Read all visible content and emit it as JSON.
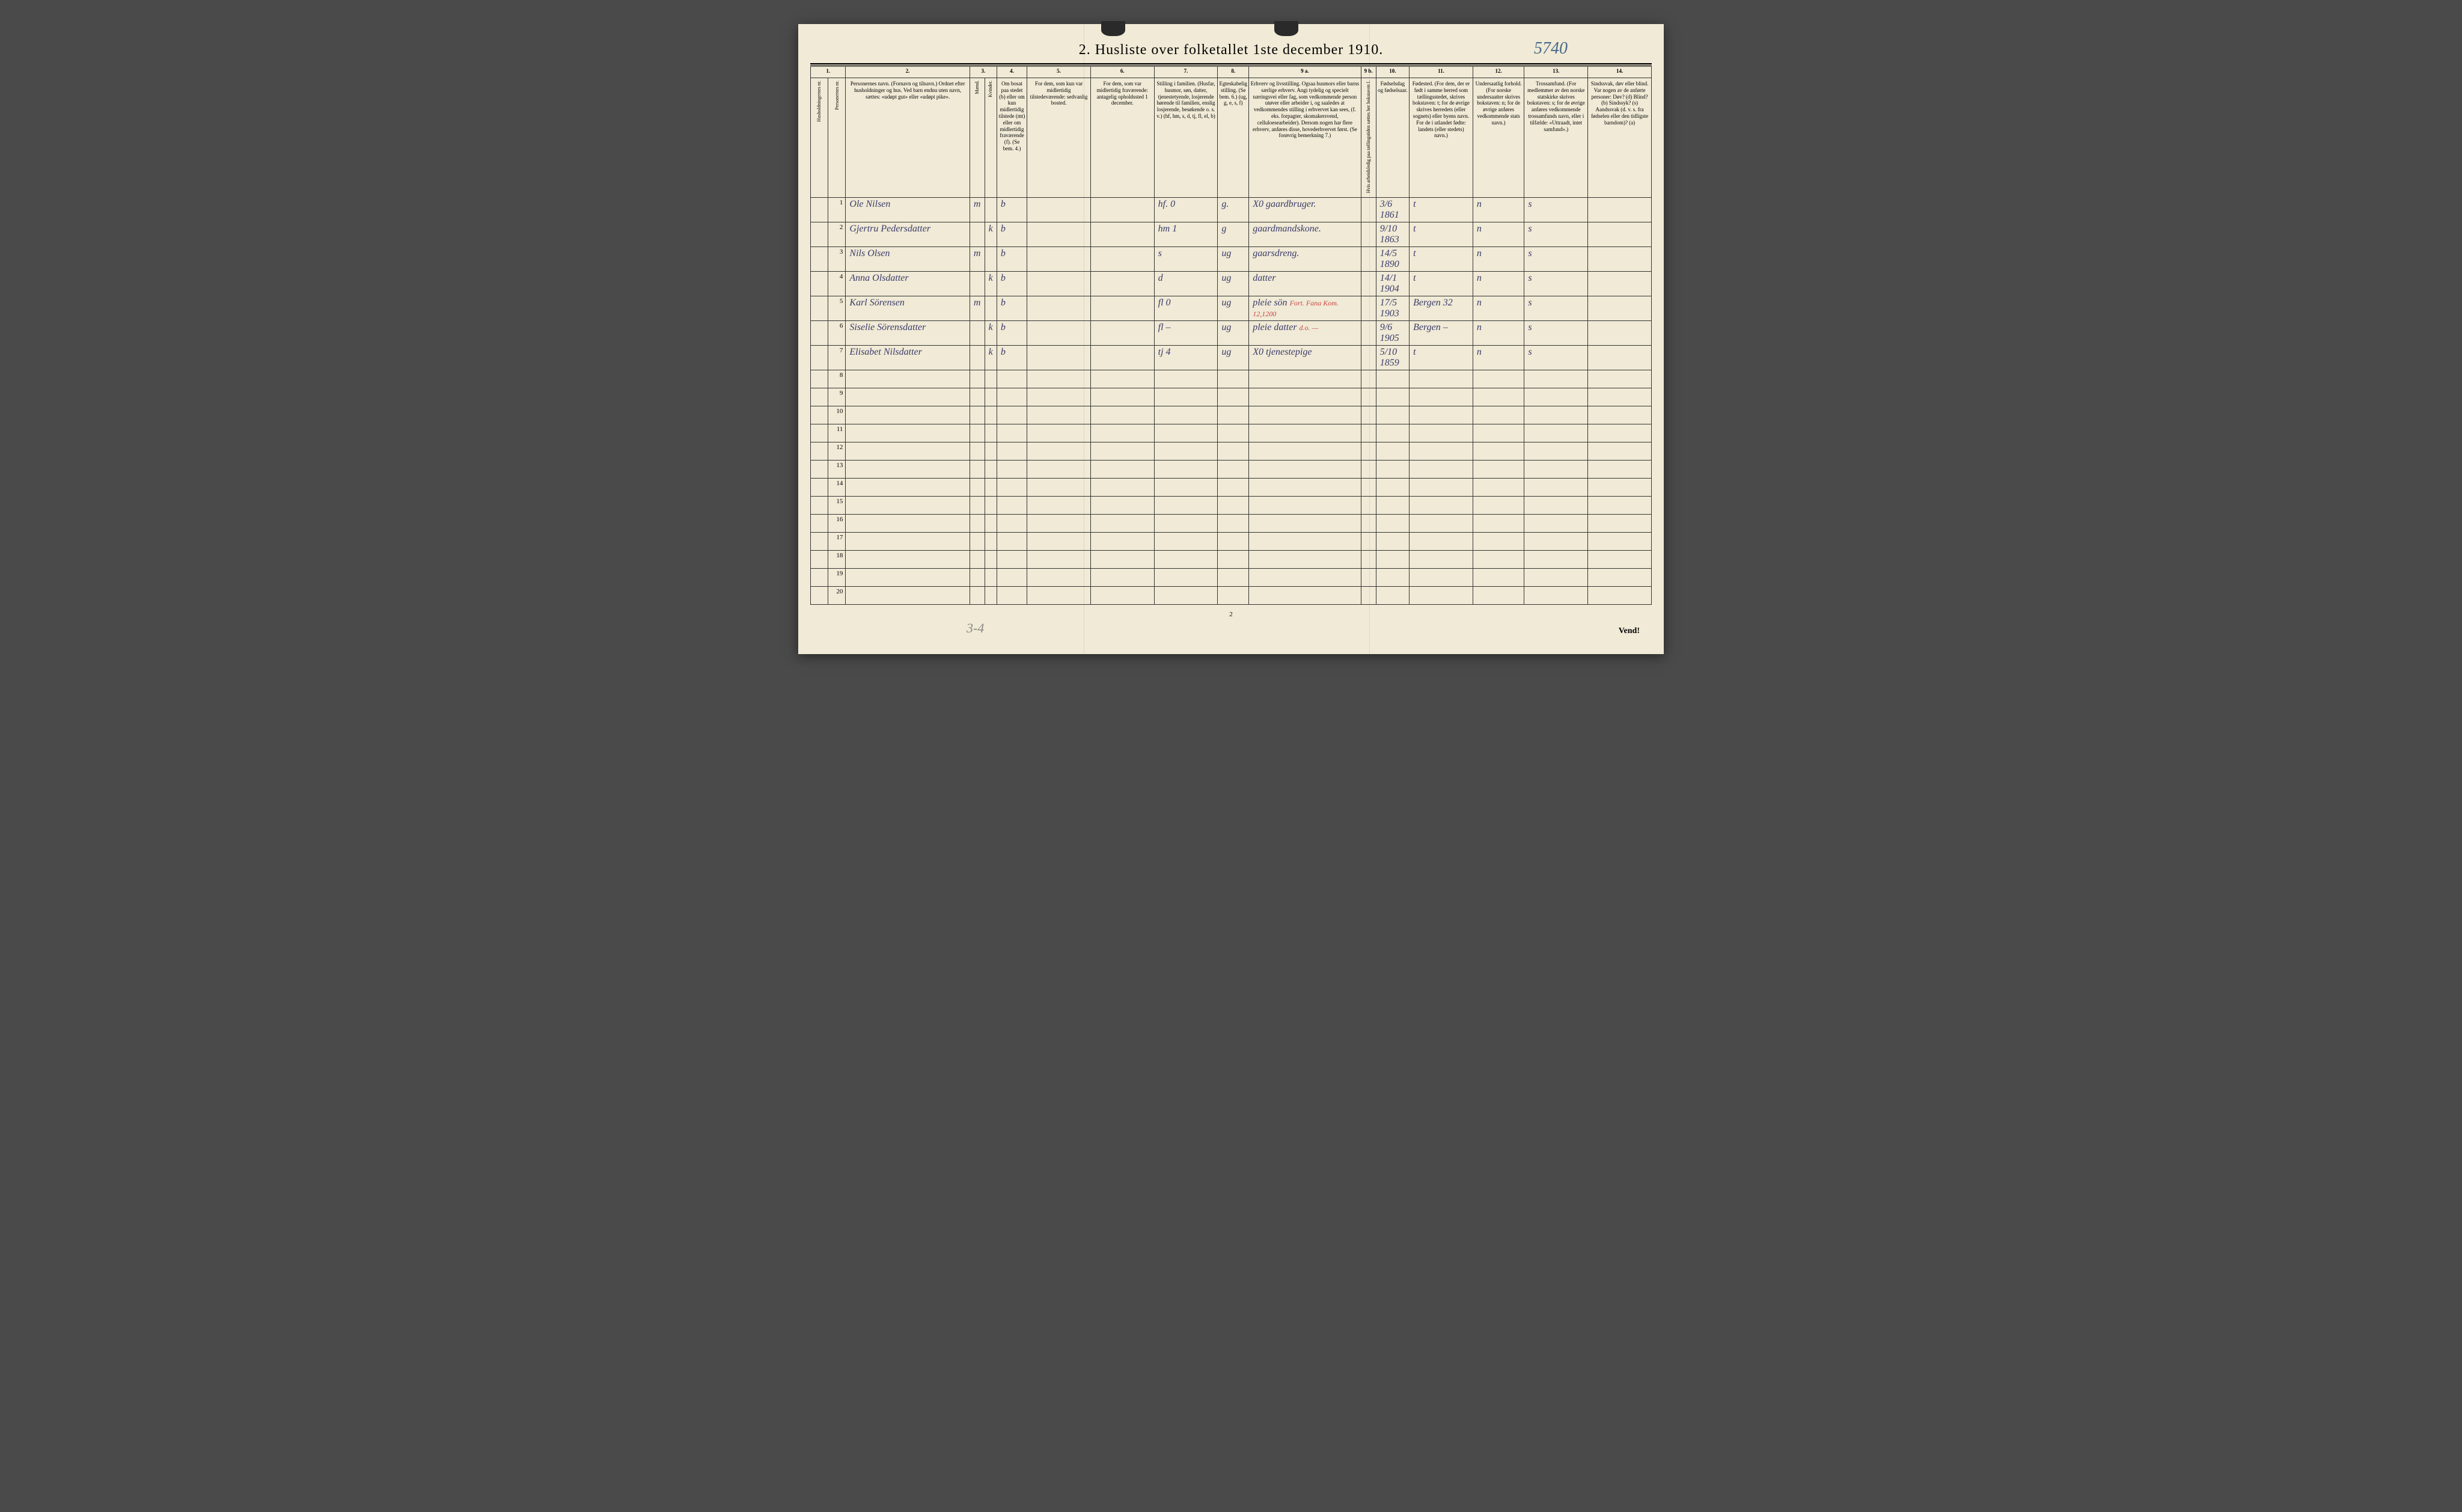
{
  "title": "2.  Husliste over folketallet 1ste december 1910.",
  "handwritten_top_right": "5740",
  "bottom_annotation": "3-4",
  "page_number": "2",
  "vend_label": "Vend!",
  "columns": {
    "nums": [
      "1.",
      "2.",
      "3.",
      "4.",
      "5.",
      "6.",
      "7.",
      "8.",
      "9 a.",
      "9 b.",
      "10.",
      "11.",
      "12.",
      "13.",
      "14."
    ],
    "h1_vert": "Husholdningernes nr.",
    "h1b_vert": "Personernes nr.",
    "h2": "Personernes navn.\n(Fornavn og tilnavn.)\nOrdnet efter husholdninger og hus.\nVed barn endnu uten navn, sættes: «udøpt gut» eller «udøpt pike».",
    "h3_top": "Kjøn.",
    "h3_m": "Mænd.",
    "h3_k": "Kvinder.",
    "h3_sub": "m. k.",
    "h4": "Om bosat paa stedet (b) eller om kun midlertidig tilstede (mt) eller om midlertidig fraværende (f). (Se bem. 4.)",
    "h5": "For dem, som kun var midlertidig tilstedeværende:\nsedvanlig bosted.",
    "h6": "For dem, som var midlertidig fraværende:\nantagelig opholdssted 1 december.",
    "h7": "Stilling i familien.\n(Husfar, husmor, søn, datter, tjenestetyende, losjerende hørende til familien, enslig losjerende, besøkende o. s. v.)\n(hf, hm, s, d, tj, fl, el, b)",
    "h8": "Egteskabelig stilling.\n(Se bem. 6.)\n(ug, g, e, s, f)",
    "h9a": "Erhverv og livsstilling.\nOgsaa husmors eller barns særlige erhverv. Angi tydelig og specielt næringsvei eller fag, som vedkommende person utøver eller arbeider i, og saaledes at vedkommendes stilling i erhvervet kan sees, (f. eks. forpagter, skomakersvend, celluloesearbeider). Dersom nogen har flere erhverv, anføres disse, hovederhvervet først.\n(Se forøvrig bemerkning 7.)",
    "h9b": "Hvis arbeidsledig paa tællingstiden sættes her bokstaven l.",
    "h10": "Fødselsdag og fødselsaar.",
    "h11": "Fødested.\n(For dem, der er født i samme herred som tællingsstedet, skrives bokstaven: t; for de øvrige skrives herredets (eller sognets) eller byens navn. For de i utlandet fødte: landets (eller stedets) navn.)",
    "h12": "Undersaatlig forhold.\n(For norske undersaatter skrives bokstaven: n; for de øvrige anføres vedkommende stats navn.)",
    "h13": "Trossamfund.\n(For medlemmer av den norske statskirke skrives bokstaven: s; for de øvrige anføres vedkommende trossamfunds navn, eller i tilfælde: «Uttraadt, intet samfund».)",
    "h14": "Sindssvak, døv eller blind.\nVar nogen av de anførte personer:\nDøv? (d)\nBlind? (b)\nSindssyk? (s)\nAandssvak (d. v. s. fra fødselen eller den tidligste barndom)? (a)"
  },
  "rows": [
    {
      "n": "1",
      "name": "Ole Nilsen",
      "sex_m": "m",
      "sex_k": "",
      "bosat": "b",
      "c5": "",
      "c6": "",
      "c7": "hf.    0",
      "c8": "g.",
      "c9a": "X0 gaardbruger.",
      "c9b": "",
      "c10": "3/6 1861",
      "c11": "t",
      "c12": "n",
      "c13": "s",
      "c14": ""
    },
    {
      "n": "2",
      "name": "Gjertru Pedersdatter",
      "sex_m": "",
      "sex_k": "k",
      "bosat": "b",
      "c5": "",
      "c6": "",
      "c7": "hm    1",
      "c8": "g",
      "c9a": "gaardmandskone.",
      "c9b": "",
      "c10": "9/10 1863",
      "c11": "t",
      "c12": "n",
      "c13": "s",
      "c14": ""
    },
    {
      "n": "3",
      "name": "Nils Olsen",
      "sex_m": "m",
      "sex_k": "",
      "bosat": "b",
      "c5": "",
      "c6": "",
      "c7": "s",
      "c8": "ug",
      "c9a": "gaarsdreng.",
      "c9b": "",
      "c10": "14/5 1890",
      "c11": "t",
      "c12": "n",
      "c13": "s",
      "c14": ""
    },
    {
      "n": "4",
      "name": "Anna Olsdatter",
      "sex_m": "",
      "sex_k": "k",
      "bosat": "b",
      "c5": "",
      "c6": "",
      "c7": "d",
      "c8": "ug",
      "c9a": "datter",
      "c9b": "",
      "c10": "14/1 1904",
      "c11": "t",
      "c12": "n",
      "c13": "s",
      "c14": ""
    },
    {
      "n": "5",
      "name": "Karl Sörensen",
      "sex_m": "m",
      "sex_k": "",
      "bosat": "b",
      "c5": "",
      "c6": "",
      "c7": "fl    0",
      "c8": "ug",
      "c9a": "pleie sön",
      "c9a_red": "Fort. Fana Kom. 12,1200",
      "c9b": "",
      "c10": "17/5 1903",
      "c11": "Bergen 32",
      "c12": "n",
      "c13": "s",
      "c14": ""
    },
    {
      "n": "6",
      "name": "Siselie Sörensdatter",
      "sex_m": "",
      "sex_k": "k",
      "bosat": "b",
      "c5": "",
      "c6": "",
      "c7": "fl   –",
      "c8": "ug",
      "c9a": "pleie datter",
      "c9a_red": "d.o.    —",
      "c9b": "",
      "c10": "9/6 1905",
      "c11": "Bergen –",
      "c12": "n",
      "c13": "s",
      "c14": ""
    },
    {
      "n": "7",
      "name": "Elisabet Nilsdatter",
      "sex_m": "",
      "sex_k": "k",
      "bosat": "b",
      "c5": "",
      "c6": "",
      "c7": "tj    4",
      "c8": "ug",
      "c9a": "X0 tjenestepige",
      "c9b": "",
      "c10": "5/10 1859",
      "c11": "t",
      "c12": "n",
      "c13": "s",
      "c14": ""
    }
  ],
  "empty_rows": [
    "8",
    "9",
    "10",
    "11",
    "12",
    "13",
    "14",
    "15",
    "16",
    "17",
    "18",
    "19",
    "20"
  ]
}
